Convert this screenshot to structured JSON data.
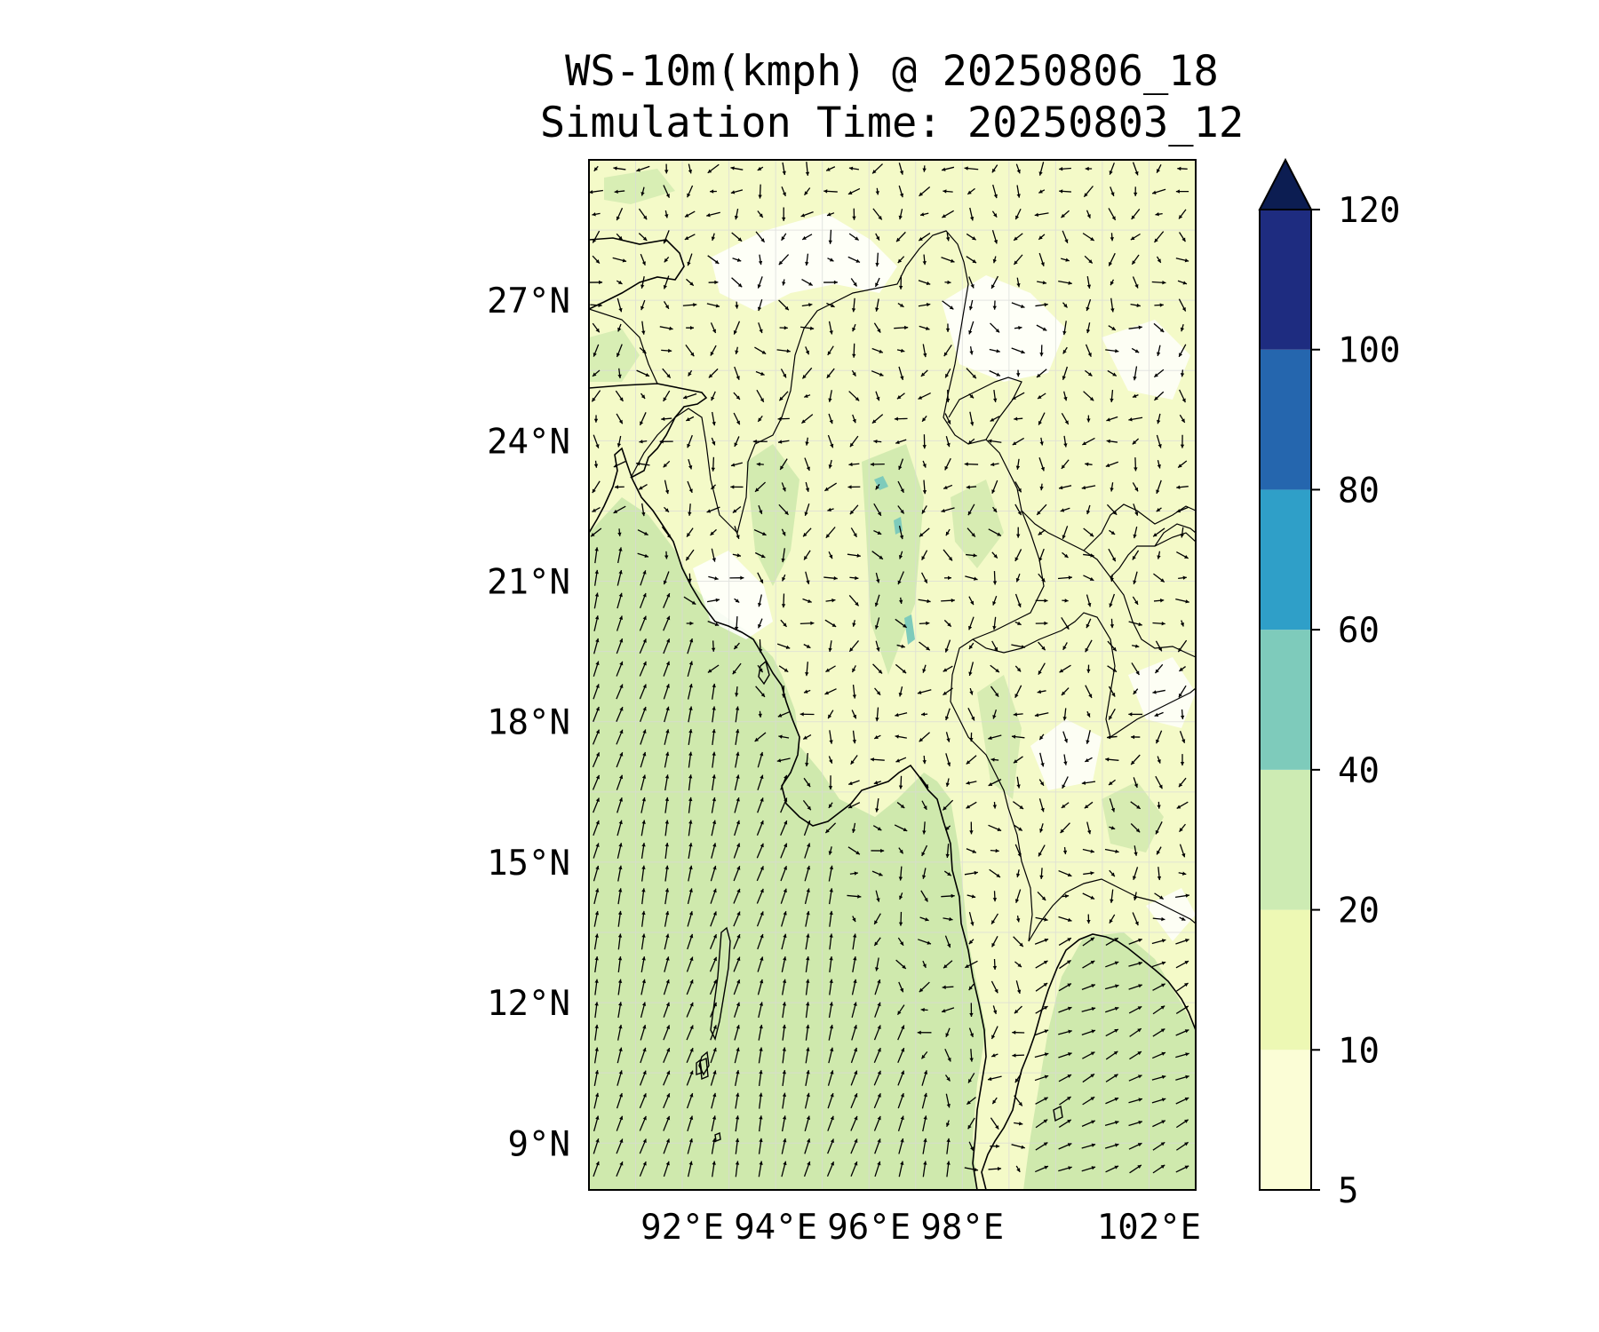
{
  "title": {
    "line1": "WS-10m(kmph) @ 20250806_18",
    "line2": "Simulation Time: 20250803_12"
  },
  "map": {
    "lon_range": [
      90.0,
      103.0
    ],
    "lat_range": [
      8.0,
      30.0
    ],
    "gridlines": true,
    "quiver_arrows": true,
    "features": [
      "coastline",
      "country borders",
      "wind speed contour fill",
      "10m wind vectors"
    ]
  },
  "axes": {
    "y_ticks": [
      {
        "value": 27,
        "label": "27°N"
      },
      {
        "value": 24,
        "label": "24°N"
      },
      {
        "value": 21,
        "label": "21°N"
      },
      {
        "value": 18,
        "label": "18°N"
      },
      {
        "value": 15,
        "label": "15°N"
      },
      {
        "value": 12,
        "label": "12°N"
      },
      {
        "value": 9,
        "label": "9°N"
      }
    ],
    "x_ticks": [
      {
        "value": 92,
        "label": "92°E"
      },
      {
        "value": 94,
        "label": "94°E"
      },
      {
        "value": 96,
        "label": "96°E"
      },
      {
        "value": 98,
        "label": "98°E"
      },
      {
        "value": 102,
        "label": "102°E"
      }
    ]
  },
  "colorbar": {
    "levels": [
      5,
      10,
      20,
      40,
      60,
      80,
      100,
      120
    ],
    "labels": [
      "5",
      "10",
      "20",
      "40",
      "60",
      "80",
      "100",
      "120"
    ],
    "colors": [
      "#fbfdd6",
      "#edf8b4",
      "#cdebb3",
      "#7ecbbb",
      "#2f9fc8",
      "#2566ae",
      "#1e2c80",
      "#0c1d52"
    ],
    "extend": "max"
  }
}
